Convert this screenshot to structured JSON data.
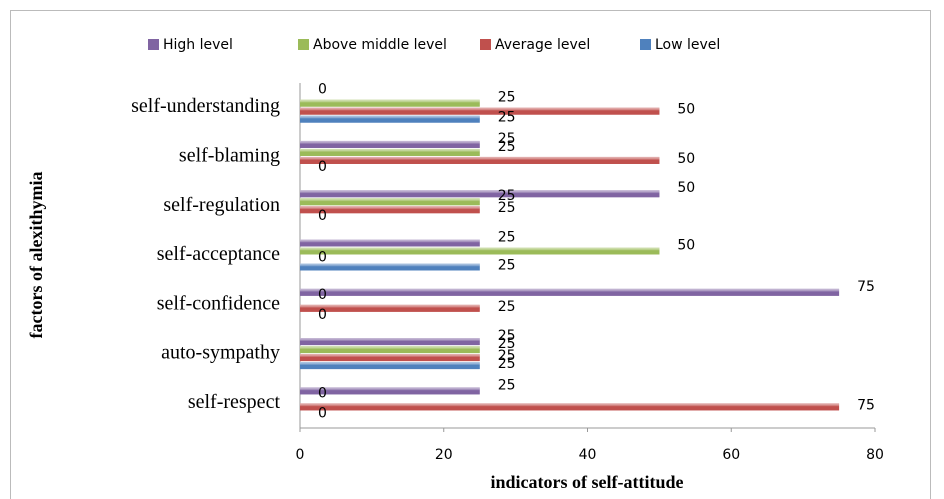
{
  "chart_data": {
    "type": "bar",
    "orientation": "horizontal",
    "x_label": "indicators of self-attitude",
    "y_label": "factors of alexithymia",
    "categories": [
      "self-respect",
      "auto-sympathy",
      "self-confidence",
      "self-acceptance",
      "self-regulation",
      "self-blaming",
      "self-understanding"
    ],
    "series": [
      {
        "name": "High level",
        "color": "#8064a2",
        "values": [
          25,
          25,
          75,
          25,
          50,
          25,
          0
        ]
      },
      {
        "name": "Above middle level",
        "color": "#9bbb59",
        "values": [
          0,
          25,
          0,
          50,
          25,
          25,
          25
        ]
      },
      {
        "name": "Average level",
        "color": "#c0504d",
        "values": [
          75,
          25,
          25,
          0,
          25,
          50,
          50
        ]
      },
      {
        "name": "Low level",
        "color": "#4f81bd",
        "values": [
          0,
          25,
          0,
          25,
          0,
          0,
          25
        ]
      }
    ],
    "xlim": [
      0,
      80
    ],
    "xticks": [
      0,
      20,
      40,
      60,
      80
    ],
    "legend": "top",
    "grid": false
  }
}
